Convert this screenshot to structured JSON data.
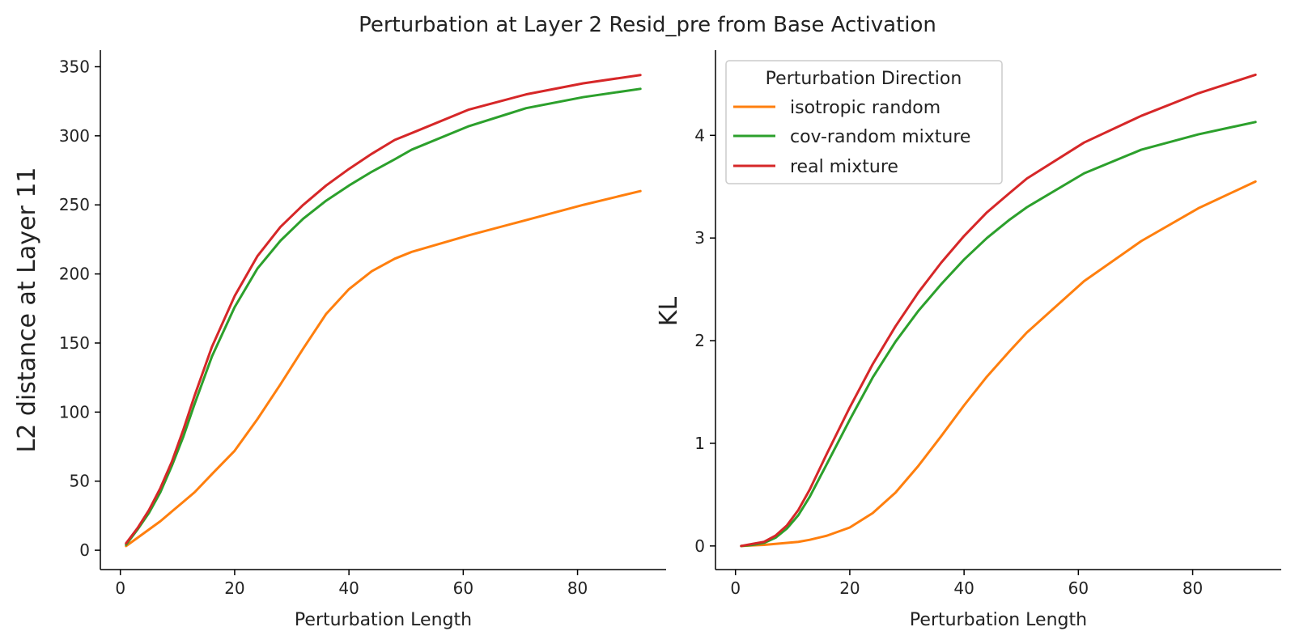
{
  "figure": {
    "title": "Perturbation at Layer 2 Resid_pre from Base Activation"
  },
  "legend": {
    "title": "Perturbation Direction",
    "placement": "upper-left of right panel",
    "entries": [
      {
        "label": "isotropic random",
        "color": "#ff7f0e"
      },
      {
        "label": "cov-random mixture",
        "color": "#2ca02c"
      },
      {
        "label": "real mixture",
        "color": "#d62728"
      }
    ]
  },
  "chart_data": [
    {
      "type": "line",
      "xlabel": "Perturbation Length",
      "ylabel": "L2 distance at Layer 11",
      "xlim": [
        -3.5,
        95.5
      ],
      "ylim": [
        -14,
        362
      ],
      "xticks": [
        0,
        20,
        40,
        60,
        80
      ],
      "yticks": [
        0,
        50,
        100,
        150,
        200,
        250,
        300,
        350
      ],
      "grid": false,
      "series": [
        {
          "name": "isotropic random",
          "color": "#ff7f0e",
          "x": [
            1,
            3,
            5,
            7,
            9,
            11,
            13,
            16,
            20,
            24,
            28,
            32,
            36,
            40,
            44,
            48,
            51,
            61,
            71,
            81,
            91
          ],
          "y": [
            3,
            9,
            15,
            21,
            28,
            35,
            42,
            55,
            72,
            95,
            120,
            146,
            171,
            189,
            202,
            211,
            216,
            228,
            239,
            250,
            260
          ]
        },
        {
          "name": "cov-random mixture",
          "color": "#2ca02c",
          "x": [
            1,
            3,
            5,
            7,
            9,
            11,
            13,
            16,
            20,
            24,
            28,
            32,
            36,
            40,
            44,
            48,
            51,
            61,
            71,
            81,
            91
          ],
          "y": [
            4,
            15,
            27,
            42,
            61,
            82,
            106,
            140,
            176,
            204,
            224,
            240,
            253,
            264,
            274,
            283,
            290,
            307,
            320,
            328,
            334
          ]
        },
        {
          "name": "real mixture",
          "color": "#d62728",
          "x": [
            1,
            3,
            5,
            7,
            9,
            11,
            13,
            16,
            20,
            24,
            28,
            32,
            36,
            40,
            44,
            48,
            51,
            61,
            71,
            81,
            91
          ],
          "y": [
            5,
            16,
            29,
            45,
            64,
            87,
            112,
            147,
            184,
            213,
            234,
            250,
            264,
            276,
            287,
            297,
            302,
            319,
            330,
            338,
            344
          ]
        }
      ]
    },
    {
      "type": "line",
      "xlabel": "Perturbation Length",
      "ylabel": "KL",
      "xlim": [
        -3.5,
        95.5
      ],
      "ylim": [
        -0.23,
        4.83
      ],
      "xticks": [
        0,
        20,
        40,
        60,
        80
      ],
      "yticks": [
        0,
        1,
        2,
        3,
        4
      ],
      "grid": false,
      "series": [
        {
          "name": "isotropic random",
          "color": "#ff7f0e",
          "x": [
            1,
            3,
            5,
            7,
            9,
            11,
            13,
            16,
            20,
            24,
            28,
            32,
            36,
            40,
            44,
            48,
            51,
            61,
            71,
            81,
            91
          ],
          "y": [
            0.0,
            0.005,
            0.01,
            0.02,
            0.03,
            0.04,
            0.06,
            0.1,
            0.18,
            0.32,
            0.52,
            0.78,
            1.07,
            1.37,
            1.65,
            1.9,
            2.08,
            2.58,
            2.97,
            3.29,
            3.55
          ]
        },
        {
          "name": "cov-random mixture",
          "color": "#2ca02c",
          "x": [
            1,
            3,
            5,
            7,
            9,
            11,
            13,
            16,
            20,
            24,
            28,
            32,
            36,
            40,
            44,
            48,
            51,
            61,
            71,
            81,
            91
          ],
          "y": [
            0.0,
            0.01,
            0.03,
            0.08,
            0.17,
            0.3,
            0.48,
            0.8,
            1.23,
            1.64,
            1.99,
            2.29,
            2.55,
            2.79,
            3.0,
            3.18,
            3.3,
            3.63,
            3.86,
            4.01,
            4.13
          ]
        },
        {
          "name": "real mixture",
          "color": "#d62728",
          "x": [
            1,
            3,
            5,
            7,
            9,
            11,
            13,
            16,
            20,
            24,
            28,
            32,
            36,
            40,
            44,
            48,
            51,
            61,
            71,
            81,
            91
          ],
          "y": [
            0.0,
            0.02,
            0.04,
            0.1,
            0.2,
            0.35,
            0.55,
            0.9,
            1.35,
            1.77,
            2.14,
            2.47,
            2.76,
            3.02,
            3.25,
            3.44,
            3.58,
            3.93,
            4.19,
            4.41,
            4.59
          ]
        }
      ]
    }
  ]
}
